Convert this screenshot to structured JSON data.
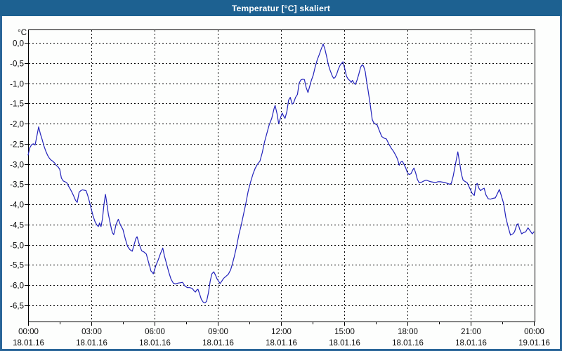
{
  "window": {
    "title": "Temperatur [°C] skaliert"
  },
  "colors": {
    "titlebar_bg": "#1d6191",
    "titlebar_text": "#ffffff",
    "window_border": "#2a6598",
    "plot_bg": "#fdfefd",
    "axis": "#000000",
    "grid": "#000000",
    "tick_label": "#0a0a0a",
    "line": "#2222bb"
  },
  "chart_data": {
    "type": "line",
    "title": "Temperatur [°C] skaliert",
    "xlabel": "",
    "ylabel": "",
    "y_unit_label": "°C",
    "grid": "dashed",
    "legend": "none",
    "ylim": [
      -6.9,
      0.33
    ],
    "xlim_hours": [
      0,
      24
    ],
    "y_ticks": [
      {
        "value": 0.0,
        "label": "0,0"
      },
      {
        "value": -0.5,
        "label": "-0,5"
      },
      {
        "value": -1.0,
        "label": "-1,0"
      },
      {
        "value": -1.5,
        "label": "-1,5"
      },
      {
        "value": -2.0,
        "label": "-2,0"
      },
      {
        "value": -2.5,
        "label": "-2,5"
      },
      {
        "value": -3.0,
        "label": "-3,0"
      },
      {
        "value": -3.5,
        "label": "-3,5"
      },
      {
        "value": -4.0,
        "label": "-4,0"
      },
      {
        "value": -4.5,
        "label": "-4,5"
      },
      {
        "value": -5.0,
        "label": "-5,0"
      },
      {
        "value": -5.5,
        "label": "-5,5"
      },
      {
        "value": -6.0,
        "label": "-6,0"
      },
      {
        "value": -6.5,
        "label": "-6,5"
      }
    ],
    "x_ticks": [
      {
        "hour": 0,
        "time": "00:00",
        "date": "18.01.16"
      },
      {
        "hour": 3,
        "time": "03:00",
        "date": "18.01.16"
      },
      {
        "hour": 6,
        "time": "06:00",
        "date": "18.01.16"
      },
      {
        "hour": 9,
        "time": "09:00",
        "date": "18.01.16"
      },
      {
        "hour": 12,
        "time": "12:00",
        "date": "18.01.16"
      },
      {
        "hour": 15,
        "time": "15:00",
        "date": "18.01.16"
      },
      {
        "hour": 18,
        "time": "18:00",
        "date": "18.01.16"
      },
      {
        "hour": 21,
        "time": "21:00",
        "date": "18.01.16"
      },
      {
        "hour": 24,
        "time": "00:00",
        "date": "19.01.16"
      }
    ],
    "x_minor_ticks_hours": [
      1.5,
      4.5,
      7.5,
      10.5,
      13.5,
      16.5,
      19.5,
      22.5
    ],
    "series": [
      {
        "name": "Temperatur",
        "color": "#2222bb",
        "points": [
          [
            0,
            -2.78
          ],
          [
            0.08,
            -2.6
          ],
          [
            0.17,
            -2.52
          ],
          [
            0.25,
            -2.5
          ],
          [
            0.33,
            -2.53
          ],
          [
            0.42,
            -2.3
          ],
          [
            0.5,
            -2.08
          ],
          [
            0.58,
            -2.25
          ],
          [
            0.67,
            -2.4
          ],
          [
            0.75,
            -2.55
          ],
          [
            0.83,
            -2.67
          ],
          [
            0.92,
            -2.78
          ],
          [
            1,
            -2.85
          ],
          [
            1.08,
            -2.9
          ],
          [
            1.17,
            -2.93
          ],
          [
            1.25,
            -2.97
          ],
          [
            1.33,
            -3.03
          ],
          [
            1.42,
            -3.07
          ],
          [
            1.5,
            -3.13
          ],
          [
            1.58,
            -3.35
          ],
          [
            1.67,
            -3.42
          ],
          [
            1.75,
            -3.44
          ],
          [
            1.83,
            -3.46
          ],
          [
            1.92,
            -3.55
          ],
          [
            2,
            -3.62
          ],
          [
            2.08,
            -3.7
          ],
          [
            2.17,
            -3.8
          ],
          [
            2.25,
            -3.9
          ],
          [
            2.33,
            -3.95
          ],
          [
            2.42,
            -3.7
          ],
          [
            2.5,
            -3.66
          ],
          [
            2.58,
            -3.64
          ],
          [
            2.67,
            -3.65
          ],
          [
            2.75,
            -3.66
          ],
          [
            2.83,
            -3.78
          ],
          [
            2.92,
            -3.95
          ],
          [
            3,
            -4.12
          ],
          [
            3.08,
            -4.28
          ],
          [
            3.17,
            -4.42
          ],
          [
            3.25,
            -4.5
          ],
          [
            3.33,
            -4.55
          ],
          [
            3.39,
            -4.46
          ],
          [
            3.46,
            -4.55
          ],
          [
            3.53,
            -4.35
          ],
          [
            3.6,
            -4.0
          ],
          [
            3.67,
            -3.75
          ],
          [
            3.73,
            -3.95
          ],
          [
            3.81,
            -4.25
          ],
          [
            3.89,
            -4.45
          ],
          [
            3.95,
            -4.6
          ],
          [
            4,
            -4.7
          ],
          [
            4.06,
            -4.75
          ],
          [
            4.11,
            -4.65
          ],
          [
            4.17,
            -4.5
          ],
          [
            4.28,
            -4.37
          ],
          [
            4.39,
            -4.52
          ],
          [
            4.5,
            -4.62
          ],
          [
            4.61,
            -4.85
          ],
          [
            4.72,
            -5.04
          ],
          [
            4.83,
            -5.12
          ],
          [
            4.94,
            -5.16
          ],
          [
            5.03,
            -5.0
          ],
          [
            5.11,
            -4.85
          ],
          [
            5.17,
            -4.8
          ],
          [
            5.28,
            -5.0
          ],
          [
            5.39,
            -5.15
          ],
          [
            5.5,
            -5.18
          ],
          [
            5.61,
            -5.23
          ],
          [
            5.67,
            -5.35
          ],
          [
            5.78,
            -5.55
          ],
          [
            5.83,
            -5.65
          ],
          [
            5.89,
            -5.68
          ],
          [
            5.94,
            -5.72
          ],
          [
            6,
            -5.62
          ],
          [
            6.06,
            -5.52
          ],
          [
            6.17,
            -5.38
          ],
          [
            6.28,
            -5.22
          ],
          [
            6.39,
            -5.08
          ],
          [
            6.47,
            -5.28
          ],
          [
            6.56,
            -5.45
          ],
          [
            6.67,
            -5.67
          ],
          [
            6.78,
            -5.85
          ],
          [
            6.89,
            -5.95
          ],
          [
            7,
            -5.97
          ],
          [
            7.11,
            -5.95
          ],
          [
            7.22,
            -5.94
          ],
          [
            7.33,
            -5.93
          ],
          [
            7.44,
            -6.02
          ],
          [
            7.56,
            -6.06
          ],
          [
            7.67,
            -6.06
          ],
          [
            7.78,
            -6.08
          ],
          [
            7.89,
            -6.15
          ],
          [
            7.94,
            -6.17
          ],
          [
            8,
            -6.12
          ],
          [
            8.06,
            -6.1
          ],
          [
            8.14,
            -6.22
          ],
          [
            8.22,
            -6.35
          ],
          [
            8.31,
            -6.42
          ],
          [
            8.39,
            -6.44
          ],
          [
            8.47,
            -6.4
          ],
          [
            8.56,
            -6.18
          ],
          [
            8.64,
            -5.9
          ],
          [
            8.72,
            -5.72
          ],
          [
            8.81,
            -5.67
          ],
          [
            8.89,
            -5.75
          ],
          [
            8.97,
            -5.85
          ],
          [
            9.06,
            -5.92
          ],
          [
            9.11,
            -5.96
          ],
          [
            9.19,
            -5.9
          ],
          [
            9.28,
            -5.83
          ],
          [
            9.39,
            -5.78
          ],
          [
            9.5,
            -5.73
          ],
          [
            9.61,
            -5.62
          ],
          [
            9.69,
            -5.48
          ],
          [
            9.78,
            -5.3
          ],
          [
            9.89,
            -5.05
          ],
          [
            10,
            -4.75
          ],
          [
            10.11,
            -4.52
          ],
          [
            10.22,
            -4.25
          ],
          [
            10.33,
            -3.98
          ],
          [
            10.44,
            -3.68
          ],
          [
            10.56,
            -3.44
          ],
          [
            10.67,
            -3.25
          ],
          [
            10.78,
            -3.1
          ],
          [
            10.89,
            -3.0
          ],
          [
            11,
            -2.93
          ],
          [
            11.11,
            -2.72
          ],
          [
            11.22,
            -2.45
          ],
          [
            11.33,
            -2.24
          ],
          [
            11.44,
            -2.03
          ],
          [
            11.56,
            -1.87
          ],
          [
            11.67,
            -1.63
          ],
          [
            11.72,
            -1.55
          ],
          [
            11.81,
            -1.75
          ],
          [
            11.89,
            -2.0
          ],
          [
            11.94,
            -1.92
          ],
          [
            12,
            -1.82
          ],
          [
            12.06,
            -1.74
          ],
          [
            12.11,
            -1.8
          ],
          [
            12.19,
            -1.87
          ],
          [
            12.28,
            -1.7
          ],
          [
            12.36,
            -1.42
          ],
          [
            12.44,
            -1.35
          ],
          [
            12.53,
            -1.52
          ],
          [
            12.61,
            -1.47
          ],
          [
            12.69,
            -1.35
          ],
          [
            12.78,
            -1.28
          ],
          [
            12.86,
            -1.0
          ],
          [
            12.94,
            -0.92
          ],
          [
            13.03,
            -0.9
          ],
          [
            13.11,
            -0.91
          ],
          [
            13.19,
            -1.1
          ],
          [
            13.28,
            -1.23
          ],
          [
            13.36,
            -1.08
          ],
          [
            13.44,
            -0.93
          ],
          [
            13.53,
            -0.8
          ],
          [
            13.61,
            -0.62
          ],
          [
            13.72,
            -0.42
          ],
          [
            13.81,
            -0.3
          ],
          [
            13.89,
            -0.18
          ],
          [
            14,
            -0.03
          ],
          [
            14.08,
            -0.15
          ],
          [
            14.17,
            -0.35
          ],
          [
            14.25,
            -0.55
          ],
          [
            14.33,
            -0.68
          ],
          [
            14.44,
            -0.83
          ],
          [
            14.5,
            -0.88
          ],
          [
            14.56,
            -0.86
          ],
          [
            14.64,
            -0.78
          ],
          [
            14.72,
            -0.65
          ],
          [
            14.81,
            -0.55
          ],
          [
            14.89,
            -0.5
          ],
          [
            14.94,
            -0.47
          ],
          [
            15.03,
            -0.65
          ],
          [
            15.11,
            -0.83
          ],
          [
            15.19,
            -0.9
          ],
          [
            15.28,
            -0.94
          ],
          [
            15.33,
            -0.98
          ],
          [
            15.39,
            -0.93
          ],
          [
            15.47,
            -1.0
          ],
          [
            15.53,
            -1.03
          ],
          [
            15.61,
            -0.92
          ],
          [
            15.69,
            -0.78
          ],
          [
            15.78,
            -0.6
          ],
          [
            15.86,
            -0.54
          ],
          [
            15.92,
            -0.58
          ],
          [
            16,
            -0.72
          ],
          [
            16.06,
            -0.95
          ],
          [
            16.11,
            -1.1
          ],
          [
            16.22,
            -1.48
          ],
          [
            16.33,
            -1.9
          ],
          [
            16.39,
            -1.97
          ],
          [
            16.44,
            -2.0
          ],
          [
            16.56,
            -2.03
          ],
          [
            16.67,
            -2.18
          ],
          [
            16.78,
            -2.32
          ],
          [
            16.89,
            -2.36
          ],
          [
            17,
            -2.38
          ],
          [
            17.11,
            -2.5
          ],
          [
            17.22,
            -2.6
          ],
          [
            17.33,
            -2.68
          ],
          [
            17.44,
            -2.78
          ],
          [
            17.53,
            -2.88
          ],
          [
            17.61,
            -3.03
          ],
          [
            17.69,
            -2.95
          ],
          [
            17.75,
            -2.93
          ],
          [
            17.83,
            -3.0
          ],
          [
            17.92,
            -3.1
          ],
          [
            18,
            -3.22
          ],
          [
            18.08,
            -3.26
          ],
          [
            18.17,
            -3.24
          ],
          [
            18.25,
            -3.15
          ],
          [
            18.31,
            -3.1
          ],
          [
            18.39,
            -3.22
          ],
          [
            18.47,
            -3.38
          ],
          [
            18.56,
            -3.47
          ],
          [
            18.67,
            -3.45
          ],
          [
            18.78,
            -3.42
          ],
          [
            18.89,
            -3.4
          ],
          [
            19,
            -3.42
          ],
          [
            19.11,
            -3.44
          ],
          [
            19.22,
            -3.45
          ],
          [
            19.33,
            -3.46
          ],
          [
            19.44,
            -3.44
          ],
          [
            19.56,
            -3.44
          ],
          [
            19.67,
            -3.45
          ],
          [
            19.78,
            -3.46
          ],
          [
            19.89,
            -3.48
          ],
          [
            20,
            -3.5
          ],
          [
            20.08,
            -3.48
          ],
          [
            20.17,
            -3.3
          ],
          [
            20.28,
            -3.0
          ],
          [
            20.39,
            -2.7
          ],
          [
            20.47,
            -2.95
          ],
          [
            20.56,
            -3.25
          ],
          [
            20.64,
            -3.4
          ],
          [
            20.72,
            -3.43
          ],
          [
            20.83,
            -3.46
          ],
          [
            20.94,
            -3.58
          ],
          [
            21.06,
            -3.72
          ],
          [
            21.17,
            -3.78
          ],
          [
            21.25,
            -3.52
          ],
          [
            21.31,
            -3.48
          ],
          [
            21.39,
            -3.6
          ],
          [
            21.47,
            -3.66
          ],
          [
            21.56,
            -3.62
          ],
          [
            21.64,
            -3.6
          ],
          [
            21.72,
            -3.76
          ],
          [
            21.83,
            -3.86
          ],
          [
            21.94,
            -3.87
          ],
          [
            22.06,
            -3.85
          ],
          [
            22.17,
            -3.84
          ],
          [
            22.28,
            -3.72
          ],
          [
            22.36,
            -3.63
          ],
          [
            22.44,
            -3.76
          ],
          [
            22.56,
            -3.97
          ],
          [
            22.67,
            -4.33
          ],
          [
            22.78,
            -4.56
          ],
          [
            22.89,
            -4.76
          ],
          [
            23,
            -4.73
          ],
          [
            23.08,
            -4.68
          ],
          [
            23.19,
            -4.5
          ],
          [
            23.25,
            -4.48
          ],
          [
            23.33,
            -4.62
          ],
          [
            23.42,
            -4.73
          ],
          [
            23.5,
            -4.7
          ],
          [
            23.61,
            -4.68
          ],
          [
            23.72,
            -4.58
          ],
          [
            23.83,
            -4.66
          ],
          [
            23.92,
            -4.73
          ],
          [
            24,
            -4.68
          ]
        ]
      }
    ]
  }
}
